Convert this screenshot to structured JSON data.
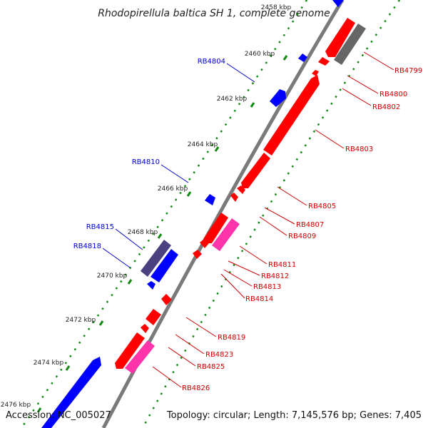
{
  "title": "Rhodopirellula baltica SH 1, complete genome",
  "accession": "Accession: NC_005027",
  "topology": "Topology: circular; Length: 7,145,576 bp; Genes: 7,405",
  "ticks": [
    "2458 kbp",
    "2460 kbp",
    "2462 kbp",
    "2464 kbp",
    "2466 kbp",
    "2468 kbp",
    "2470 kbp",
    "2472 kbp",
    "2474 kbp",
    "2476 kbp"
  ],
  "gene_labels_forward": [
    "RB4804",
    "RB4810",
    "RB4815",
    "RB4818"
  ],
  "gene_labels_reverse": [
    "RB4799",
    "RB4800",
    "RB4802",
    "RB4803",
    "RB4805",
    "RB4807",
    "RB4809",
    "RB4811",
    "RB4812",
    "RB4813",
    "RB4814",
    "RB4819",
    "RB4823",
    "RB4825",
    "RB4826"
  ],
  "colors": {
    "cds_reverse": "#ff0000",
    "cds_forward": "#0000ff",
    "trna": "#ff33aa",
    "rrna": "#4b4080",
    "other": "#666666",
    "tick": "#118811",
    "backbone": "#7a7a7a"
  }
}
